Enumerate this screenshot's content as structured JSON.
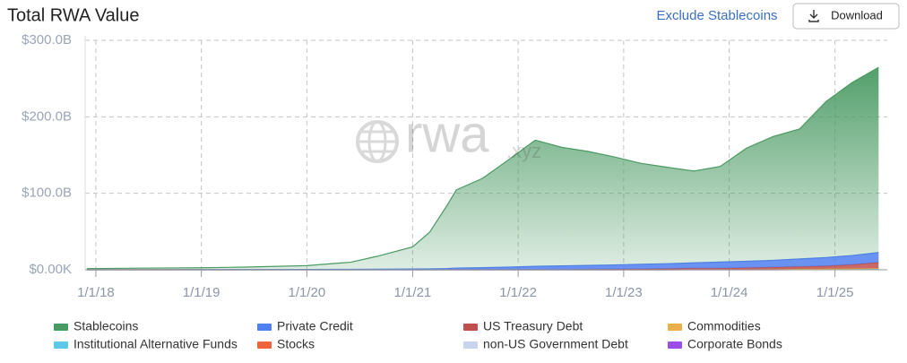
{
  "header": {
    "exclude": "Exclude Stablecoins",
    "download": "Download"
  },
  "chart_data": {
    "type": "stacked-area",
    "title": "Total RWA Value",
    "watermark": {
      "text": "rwa",
      "suffix": ".xyz"
    },
    "x": [
      "2017-12-01",
      "2018-06-01",
      "2019-01-01",
      "2019-06-01",
      "2020-01-01",
      "2020-06-01",
      "2020-09-01",
      "2021-01-01",
      "2021-03-01",
      "2021-05-01",
      "2021-06-01",
      "2021-09-01",
      "2021-12-01",
      "2022-03-01",
      "2022-06-01",
      "2022-09-01",
      "2022-12-01",
      "2023-03-01",
      "2023-06-01",
      "2023-09-01",
      "2023-12-01",
      "2024-03-01",
      "2024-06-01",
      "2024-09-01",
      "2024-12-01",
      "2025-03-01",
      "2025-06-01"
    ],
    "xlim": [
      "2017-11-25",
      "2025-07-01"
    ],
    "xticks": [
      {
        "value": "2018-01-01",
        "label": "1/1/18"
      },
      {
        "value": "2019-01-01",
        "label": "1/1/19"
      },
      {
        "value": "2020-01-01",
        "label": "1/1/20"
      },
      {
        "value": "2021-01-01",
        "label": "1/1/21"
      },
      {
        "value": "2022-01-01",
        "label": "1/1/22"
      },
      {
        "value": "2023-01-01",
        "label": "1/1/23"
      },
      {
        "value": "2024-01-01",
        "label": "1/1/24"
      },
      {
        "value": "2025-01-01",
        "label": "1/1/25"
      }
    ],
    "ylim": [
      0,
      300000000000.0
    ],
    "yticks": [
      {
        "value": 0,
        "label": "$0.00K"
      },
      {
        "value": 100000000000.0,
        "label": "$100.0B"
      },
      {
        "value": 200000000000.0,
        "label": "$200.0B"
      },
      {
        "value": 300000000000.0,
        "label": "$300.0B"
      }
    ],
    "grid": true,
    "legend": "bottom",
    "series": [
      {
        "name": "Stablecoins",
        "color": "#4a9a63",
        "values": [
          1400000000.0,
          2000000000.0,
          2400000000.0,
          3200000000.0,
          5000000000.0,
          9300000000.0,
          17000000000.0,
          29000000000.0,
          48000000000.0,
          83000000000.0,
          102000000000.0,
          117000000000.0,
          141000000000.0,
          165000000000.0,
          155000000000.0,
          149000000000.0,
          141000000000.0,
          132000000000.0,
          126000000000.0,
          120000000000.0,
          125000000000.0,
          148000000000.0,
          162000000000.0,
          170000000000.0,
          204000000000.0,
          226000000000.0,
          242000000000.0
        ]
      },
      {
        "name": "Private Credit",
        "color": "#4f7ff0",
        "values": [
          0,
          0,
          100000000.0,
          200000000.0,
          300000000.0,
          500000000.0,
          600000000.0,
          800000000.0,
          1000000000.0,
          1500000000.0,
          2000000000.0,
          2500000000.0,
          3000000000.0,
          4000000000.0,
          4500000000.0,
          5000000000.0,
          5500000000.0,
          6000000000.0,
          6500000000.0,
          7000000000.0,
          8000000000.0,
          8500000000.0,
          9000000000.0,
          10000000000.0,
          11000000000.0,
          12000000000.0,
          13000000000.0
        ]
      },
      {
        "name": "US Treasury Debt",
        "color": "#c0504d",
        "values": [
          0,
          0,
          0,
          0,
          0,
          0,
          0,
          0,
          0,
          0,
          0,
          0,
          100000000.0,
          100000000.0,
          200000000.0,
          300000000.0,
          500000000.0,
          800000000.0,
          1000000000.0,
          1500000000.0,
          1500000000.0,
          2000000000.0,
          2500000000.0,
          3000000000.0,
          3500000000.0,
          5000000000.0,
          7500000000.0
        ]
      },
      {
        "name": "Commodities",
        "color": "#e8b04a",
        "values": [
          100000000.0,
          100000000.0,
          100000000.0,
          100000000.0,
          100000000.0,
          100000000.0,
          100000000.0,
          200000000.0,
          200000000.0,
          200000000.0,
          300000000.0,
          300000000.0,
          400000000.0,
          400000000.0,
          400000000.0,
          400000000.0,
          400000000.0,
          400000000.0,
          500000000.0,
          500000000.0,
          500000000.0,
          500000000.0,
          600000000.0,
          700000000.0,
          800000000.0,
          900000000.0,
          1000000000.0
        ]
      },
      {
        "name": "Institutional Alternative Funds",
        "color": "#5bc8e8",
        "values": [
          0,
          0,
          0,
          0,
          0,
          0,
          0,
          0,
          0,
          0,
          0,
          0,
          0,
          0,
          0,
          0,
          0,
          0,
          0,
          0,
          0,
          0,
          100000000.0,
          200000000.0,
          300000000.0,
          400000000.0,
          500000000.0
        ]
      },
      {
        "name": "Stocks",
        "color": "#f0643c",
        "values": [
          0,
          0,
          0,
          0,
          0,
          0,
          0,
          0,
          0,
          0,
          0,
          0,
          0,
          0,
          0,
          0,
          0,
          0,
          0,
          0,
          0,
          0,
          0,
          0,
          100000000.0,
          100000000.0,
          200000000.0
        ]
      },
      {
        "name": "non-US Government Debt",
        "color": "#c8d4ee",
        "values": [
          0,
          0,
          0,
          0,
          0,
          0,
          0,
          0,
          0,
          0,
          0,
          0,
          0,
          0,
          0,
          0,
          0,
          0,
          0,
          100000000.0,
          100000000.0,
          100000000.0,
          100000000.0,
          200000000.0,
          200000000.0,
          200000000.0,
          300000000.0
        ]
      },
      {
        "name": "Corporate Bonds",
        "color": "#9a4ee8",
        "values": [
          0,
          0,
          0,
          0,
          0,
          0,
          0,
          0,
          0,
          0,
          0,
          0,
          0,
          0,
          0,
          0,
          0,
          0,
          0,
          0,
          0,
          0,
          0,
          100000000.0,
          100000000.0,
          100000000.0,
          100000000.0
        ]
      }
    ]
  }
}
